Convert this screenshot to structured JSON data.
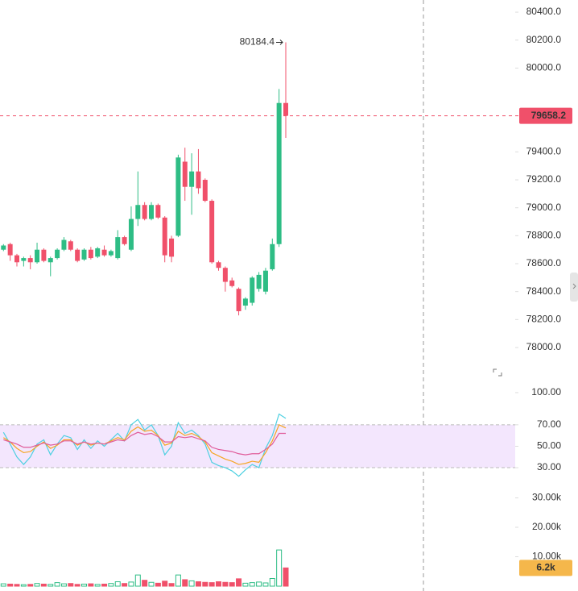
{
  "chart_data": [
    {
      "type": "candlestick",
      "open": [
        78700,
        78740,
        78660,
        78620,
        78640,
        78610,
        78700,
        78610,
        78640,
        78700,
        78760,
        78700,
        78630,
        78700,
        78650,
        78700,
        78660,
        78640,
        78790,
        78700,
        78920,
        79020,
        78920,
        79020,
        78930,
        78780,
        78800,
        79330,
        79150,
        79260,
        79200,
        79050,
        78610,
        78570,
        78480,
        78420,
        78300,
        78320,
        78420,
        78400,
        78560,
        78740,
        79750
      ],
      "high": [
        78740,
        78750,
        78670,
        78650,
        78660,
        78750,
        78710,
        78650,
        78710,
        78790,
        78770,
        78710,
        78710,
        78720,
        78720,
        78730,
        78700,
        78840,
        78800,
        79010,
        79260,
        79040,
        79040,
        79030,
        78940,
        78800,
        79380,
        79430,
        79390,
        79420,
        79210,
        79060,
        78620,
        78580,
        78500,
        78430,
        78360,
        78510,
        78540,
        78570,
        78780,
        79850,
        80184.4
      ],
      "low": [
        78690,
        78620,
        78580,
        78580,
        78560,
        78600,
        78610,
        78510,
        78630,
        78690,
        78690,
        78610,
        78620,
        78630,
        78640,
        78650,
        78650,
        78630,
        78730,
        78690,
        78870,
        78910,
        78910,
        78920,
        78610,
        78610,
        78790,
        79050,
        78950,
        79100,
        79040,
        78600,
        78550,
        78400,
        78430,
        78230,
        78270,
        78300,
        78400,
        78380,
        78550,
        78720,
        79500
      ],
      "close": [
        78730,
        78660,
        78610,
        78640,
        78610,
        78700,
        78620,
        78640,
        78700,
        78770,
        78700,
        78620,
        78700,
        78640,
        78710,
        78660,
        78690,
        78790,
        78740,
        78920,
        79020,
        78920,
        79020,
        78930,
        78660,
        78650,
        79360,
        79150,
        79260,
        79140,
        79050,
        78610,
        78570,
        78470,
        78440,
        78260,
        78350,
        78500,
        78520,
        78550,
        78740,
        79750,
        79658.2
      ],
      "up_color": "#2ebd85",
      "down_color": "#f0506a",
      "ylim": [
        77775,
        80487
      ],
      "yticks": [
        {
          "value": 78000,
          "label": "78000.0"
        },
        {
          "value": 78200,
          "label": "78200.0"
        },
        {
          "value": 78400,
          "label": "78400.0"
        },
        {
          "value": 78600,
          "label": "78600.0"
        },
        {
          "value": 78800,
          "label": "78800.0"
        },
        {
          "value": 79000,
          "label": "79000.0"
        },
        {
          "value": 79200,
          "label": "79200.0"
        },
        {
          "value": 79400,
          "label": "79400.0"
        },
        {
          "value": 80000,
          "label": "80000.0"
        },
        {
          "value": 80200,
          "label": "80200.0"
        },
        {
          "value": 80400,
          "label": "80400.0"
        }
      ]
    },
    {
      "type": "line",
      "series": [
        {
          "color": "#4dd0e1",
          "values": [
            63,
            52,
            40,
            33,
            40,
            52,
            56,
            42,
            52,
            60,
            58,
            47,
            56,
            48,
            55,
            50,
            56,
            62,
            55,
            70,
            75,
            65,
            70,
            60,
            42,
            50,
            72,
            62,
            65,
            60,
            52,
            35,
            32,
            30,
            27,
            22,
            28,
            33,
            30,
            48,
            60,
            80,
            76
          ]
        },
        {
          "color": "#f5a623",
          "values": [
            58,
            54,
            48,
            44,
            45,
            50,
            54,
            48,
            51,
            56,
            56,
            51,
            54,
            51,
            53,
            52,
            55,
            58,
            56,
            64,
            68,
            64,
            65,
            60,
            51,
            53,
            64,
            60,
            62,
            59,
            54,
            44,
            41,
            38,
            36,
            33,
            34,
            36,
            35,
            44,
            55,
            70,
            67
          ]
        },
        {
          "color": "#e05c9a",
          "values": [
            56,
            54,
            52,
            49,
            49,
            51,
            53,
            51,
            52,
            55,
            55,
            52,
            54,
            52,
            53,
            52,
            54,
            56,
            55,
            60,
            63,
            61,
            62,
            59,
            54,
            54,
            59,
            58,
            59,
            57,
            55,
            49,
            47,
            46,
            45,
            43,
            42,
            43,
            43,
            47,
            52,
            62,
            62
          ]
        }
      ],
      "band": [
        30,
        70
      ],
      "band_color": "#f3e6fd",
      "ylim": [
        15,
        112.75
      ],
      "yticks": [
        {
          "value": 30,
          "label": "30.00"
        },
        {
          "value": 50,
          "label": "50.00"
        },
        {
          "value": 70,
          "label": "70.00"
        },
        {
          "value": 100,
          "label": "100.00"
        }
      ]
    },
    {
      "type": "volume",
      "values": [
        800,
        700,
        600,
        500,
        600,
        900,
        700,
        600,
        1200,
        800,
        900,
        600,
        700,
        800,
        600,
        700,
        900,
        1500,
        900,
        1400,
        3800,
        2000,
        1300,
        1000,
        1700,
        900,
        3800,
        2200,
        1800,
        1500,
        1300,
        1200,
        1500,
        1300,
        1200,
        2500,
        1000,
        1200,
        1400,
        1100,
        2600,
        12300,
        6200
      ],
      "current": {
        "value": 6200,
        "label": "6.2k"
      },
      "current_color": "#f5b74b",
      "ylim": [
        -1644,
        34795
      ],
      "yticks": [
        {
          "value": 10000,
          "label": "10.00k"
        },
        {
          "value": 20000,
          "label": "20.00k"
        },
        {
          "value": 30000,
          "label": "30.00k"
        }
      ]
    }
  ]
}
